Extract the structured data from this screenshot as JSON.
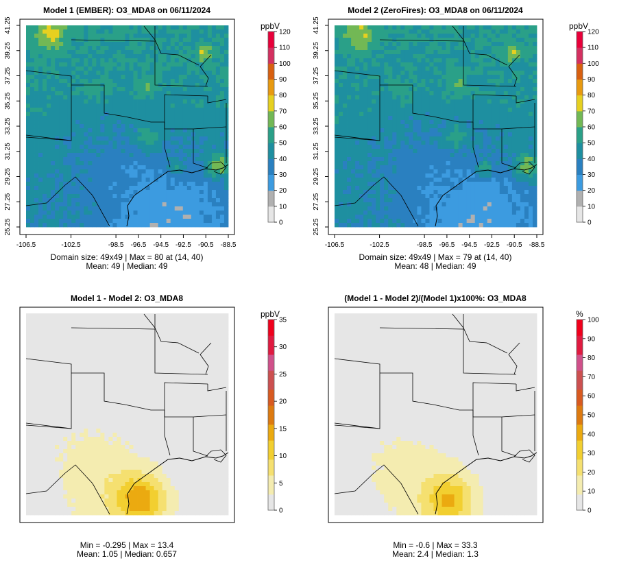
{
  "palettes": {
    "conc": [
      "#E6E6E6",
      "#B0B0B0",
      "#3C9BE0",
      "#2A80C0",
      "#1E8FA0",
      "#2AA088",
      "#72B855",
      "#E6D020",
      "#E89A10",
      "#D86010",
      "#D43060",
      "#E8003A"
    ],
    "diff": [
      "#E6E6E6",
      "#F4ECB0",
      "#F5E070",
      "#F2CF30",
      "#EBAA10",
      "#DD7A10",
      "#D85A20",
      "#CC5050",
      "#D0508A",
      "#E01A40",
      "#F0001C"
    ]
  },
  "panels": [
    {
      "title": "Model 1 (EMBER): O3_MDA8 on 06/11/2024",
      "stats_line1": "Domain size: 49x49 | Max = 80 at (14, 40)",
      "stats_line2": "Mean: 49 |  Median: 49",
      "colorbar_unit": "ppbV",
      "colorbar_ticks": [
        "0",
        "10",
        "20",
        "30",
        "40",
        "50",
        "60",
        "70",
        "80",
        "90",
        "100",
        "110",
        "120"
      ],
      "colorbar_range": [
        0,
        120
      ],
      "palette": "conc",
      "field": "conc",
      "seed": 3,
      "show_axes": true,
      "x_ticks": [
        "-106.5",
        "-102.5",
        "-98.5",
        "-96.5",
        "-94.5",
        "-92.5",
        "-90.5",
        "-88.5"
      ],
      "y_ticks": [
        "25.25",
        "27.25",
        "29.25",
        "31.25",
        "33.25",
        "35.25",
        "37.25",
        "39.25",
        "41.25"
      ]
    },
    {
      "title": "Model 2 (ZeroFires): O3_MDA8 on 06/11/2024",
      "stats_line1": "Domain size: 49x49 | Max = 79 at (14, 40)",
      "stats_line2": "Mean: 48 |  Median: 49",
      "colorbar_unit": "ppbV",
      "colorbar_ticks": [
        "0",
        "10",
        "20",
        "30",
        "40",
        "50",
        "60",
        "70",
        "80",
        "90",
        "100",
        "110",
        "120"
      ],
      "colorbar_range": [
        0,
        120
      ],
      "palette": "conc",
      "field": "conc",
      "seed": 7,
      "show_axes": true,
      "x_ticks": [
        "-106.5",
        "-102.5",
        "-98.5",
        "-96.5",
        "-94.5",
        "-92.5",
        "-90.5",
        "-88.5"
      ],
      "y_ticks": [
        "25.25",
        "27.25",
        "29.25",
        "31.25",
        "33.25",
        "35.25",
        "37.25",
        "39.25",
        "41.25"
      ]
    },
    {
      "title": "Model 1 - Model 2: O3_MDA8",
      "stats_line1": "Min = -0.295 | Max = 13.4",
      "stats_line2": "Mean: 1.05 |  Median: 0.657",
      "colorbar_unit": "ppbV",
      "colorbar_ticks": [
        "0",
        "5",
        "10",
        "15",
        "20",
        "25",
        "30",
        "35"
      ],
      "colorbar_range": [
        0,
        35
      ],
      "palette": "diff",
      "field": "diff",
      "seed": 11,
      "show_axes": false,
      "x_ticks": [],
      "y_ticks": []
    },
    {
      "title": "(Model 1 - Model 2)/(Model 1)x100%: O3_MDA8",
      "stats_line1": "Min = -0.6 | Max = 33.3",
      "stats_line2": "Mean: 2.4 |  Median: 1.3",
      "colorbar_unit": "%",
      "colorbar_ticks": [
        "0",
        "10",
        "20",
        "30",
        "40",
        "50",
        "60",
        "70",
        "80",
        "90",
        "100"
      ],
      "colorbar_range": [
        0,
        100
      ],
      "palette": "diff",
      "field": "pct",
      "seed": 13,
      "show_axes": false,
      "x_ticks": [],
      "y_ticks": []
    }
  ],
  "chart_data": [
    {
      "type": "heatmap",
      "title": "Model 1 (EMBER): O3_MDA8 on 06/11/2024",
      "grid": "49x49",
      "unit": "ppbV",
      "max": 80,
      "max_at": [
        14,
        40
      ],
      "mean": 49,
      "median": 49,
      "xlim": [
        -106.5,
        -88.5
      ],
      "ylim": [
        25.25,
        41.25
      ],
      "color_range": [
        0,
        120
      ]
    },
    {
      "type": "heatmap",
      "title": "Model 2 (ZeroFires): O3_MDA8 on 06/11/2024",
      "grid": "49x49",
      "unit": "ppbV",
      "max": 79,
      "max_at": [
        14,
        40
      ],
      "mean": 48,
      "median": 49,
      "xlim": [
        -106.5,
        -88.5
      ],
      "ylim": [
        25.25,
        41.25
      ],
      "color_range": [
        0,
        120
      ]
    },
    {
      "type": "heatmap",
      "title": "Model 1 - Model 2: O3_MDA8",
      "unit": "ppbV",
      "min": -0.295,
      "max": 13.4,
      "mean": 1.05,
      "median": 0.657,
      "color_range": [
        0,
        35
      ]
    },
    {
      "type": "heatmap",
      "title": "(Model 1 - Model 2)/(Model 1)x100%: O3_MDA8",
      "unit": "%",
      "min": -0.6,
      "max": 33.3,
      "mean": 2.4,
      "median": 1.3,
      "color_range": [
        0,
        100
      ]
    }
  ]
}
